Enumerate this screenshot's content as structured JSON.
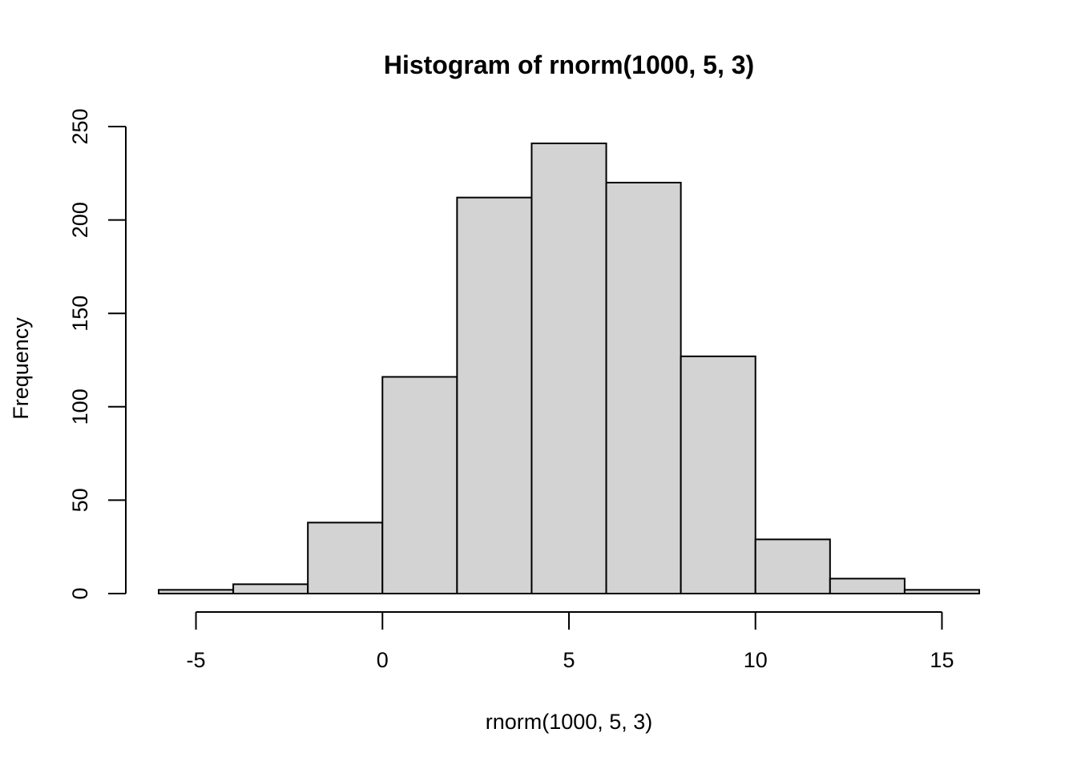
{
  "chart_data": {
    "type": "bar",
    "subtype": "histogram",
    "title": "Histogram of rnorm(1000, 5, 3)",
    "xlabel": "rnorm(1000, 5, 3)",
    "ylabel": "Frequency",
    "bin_edges": [
      -6,
      -4,
      -2,
      0,
      2,
      4,
      6,
      8,
      10,
      12,
      14,
      16
    ],
    "values": [
      2,
      5,
      38,
      116,
      212,
      241,
      220,
      127,
      29,
      8,
      2
    ],
    "xlim": [
      -6,
      16
    ],
    "ylim": [
      0,
      250
    ],
    "x_ticks": [
      -5,
      0,
      5,
      10,
      15
    ],
    "x_tick_labels": [
      "-5",
      "0",
      "5",
      "10",
      "15"
    ],
    "y_ticks": [
      0,
      50,
      100,
      150,
      200,
      250
    ],
    "y_tick_labels": [
      "0",
      "50",
      "100",
      "150",
      "200",
      "250"
    ],
    "grid": false,
    "bar_color": "#d3d3d3",
    "bar_border_color": "#000000"
  }
}
